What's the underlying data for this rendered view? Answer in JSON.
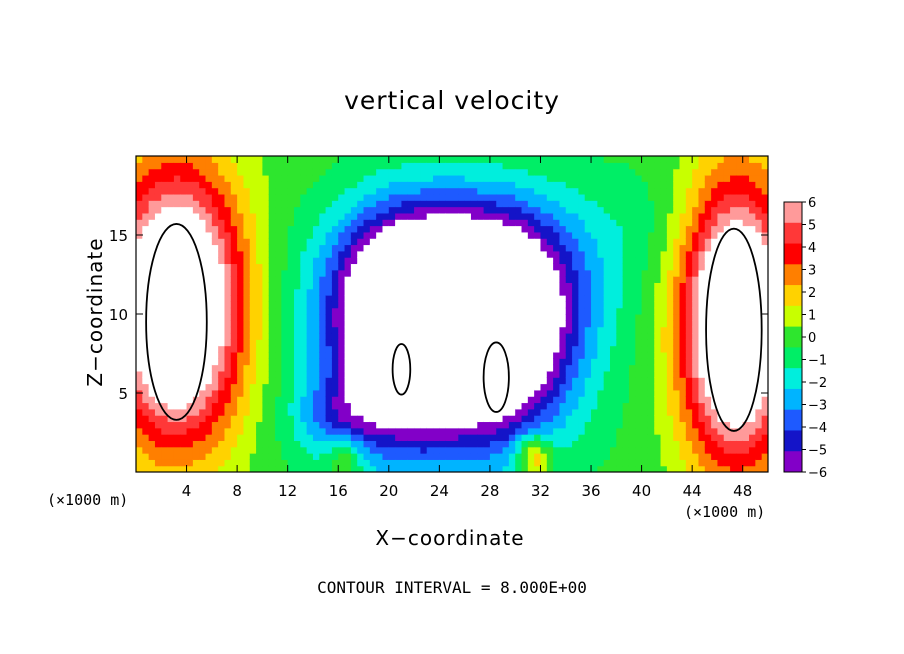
{
  "chart_data": {
    "type": "heatmap",
    "title": "vertical velocity",
    "xlabel": "X−coordinate",
    "ylabel": "Z−coordinate",
    "x_unit_left": "(×1000 m)",
    "x_unit_right": "(×1000 m)",
    "footer": "CONTOUR INTERVAL = 8.000E+00",
    "xlim": [
      0,
      50
    ],
    "ylim": [
      0,
      20
    ],
    "x_ticks": [
      4,
      8,
      12,
      16,
      20,
      24,
      28,
      32,
      36,
      40,
      44,
      48
    ],
    "x_tick_labels": [
      "4",
      "8",
      "12",
      "16",
      "20",
      "24",
      "28",
      "32",
      "36",
      "40",
      "44",
      "48"
    ],
    "y_ticks": [
      5,
      10,
      15
    ],
    "y_tick_labels": [
      "5",
      "10",
      "15"
    ],
    "colorbar": {
      "levels": [
        6,
        5,
        4,
        3,
        2,
        1,
        0,
        -1,
        -2,
        -3,
        -4,
        -5,
        -6
      ],
      "labels": [
        "6",
        "5",
        "4",
        "3",
        "2",
        "1",
        "0",
        "−1",
        "−2",
        "−3",
        "−4",
        "−5",
        "−6"
      ],
      "colors": [
        "#ff9a9a",
        "#ff3838",
        "#ff0000",
        "#ff7f00",
        "#ffd200",
        "#c8ff00",
        "#2ee62e",
        "#00ee66",
        "#00eedd",
        "#00b4ff",
        "#1e5aff",
        "#1414c8",
        "#8200c8"
      ],
      "range": [
        -6,
        6
      ]
    },
    "fields": [
      {
        "x": 3.2,
        "z": 10.5,
        "sx": 3.6,
        "sz": 5.8,
        "amp": 12
      },
      {
        "x": 47.5,
        "z": 9.5,
        "sx": 3.0,
        "sz": 6.0,
        "amp": 12
      },
      {
        "x": 21.0,
        "z": 9.0,
        "sx": 3.5,
        "sz": 4.5,
        "amp": -9
      },
      {
        "x": 28.5,
        "z": 9.0,
        "sx": 4.0,
        "sz": 4.5,
        "amp": -9
      },
      {
        "x": 25.5,
        "z": 12.5,
        "sx": 6.5,
        "sz": 3.5,
        "amp": -5
      },
      {
        "x": 24.0,
        "z": 7.0,
        "sx": 7.5,
        "sz": 5.5,
        "amp": -3
      },
      {
        "x": 16.0,
        "z": 3.5,
        "sx": 2.5,
        "sz": 1.8,
        "amp": -2.5
      },
      {
        "x": 31.5,
        "z": 1.0,
        "sx": 1.0,
        "sz": 1.0,
        "amp": 4
      },
      {
        "x": 16.5,
        "z": 1.0,
        "sx": 1.0,
        "sz": 1.0,
        "amp": 2.5
      },
      {
        "x": 40.0,
        "z": 16.0,
        "sx": 5.0,
        "sz": 3.0,
        "amp": -0.8
      }
    ]
  }
}
